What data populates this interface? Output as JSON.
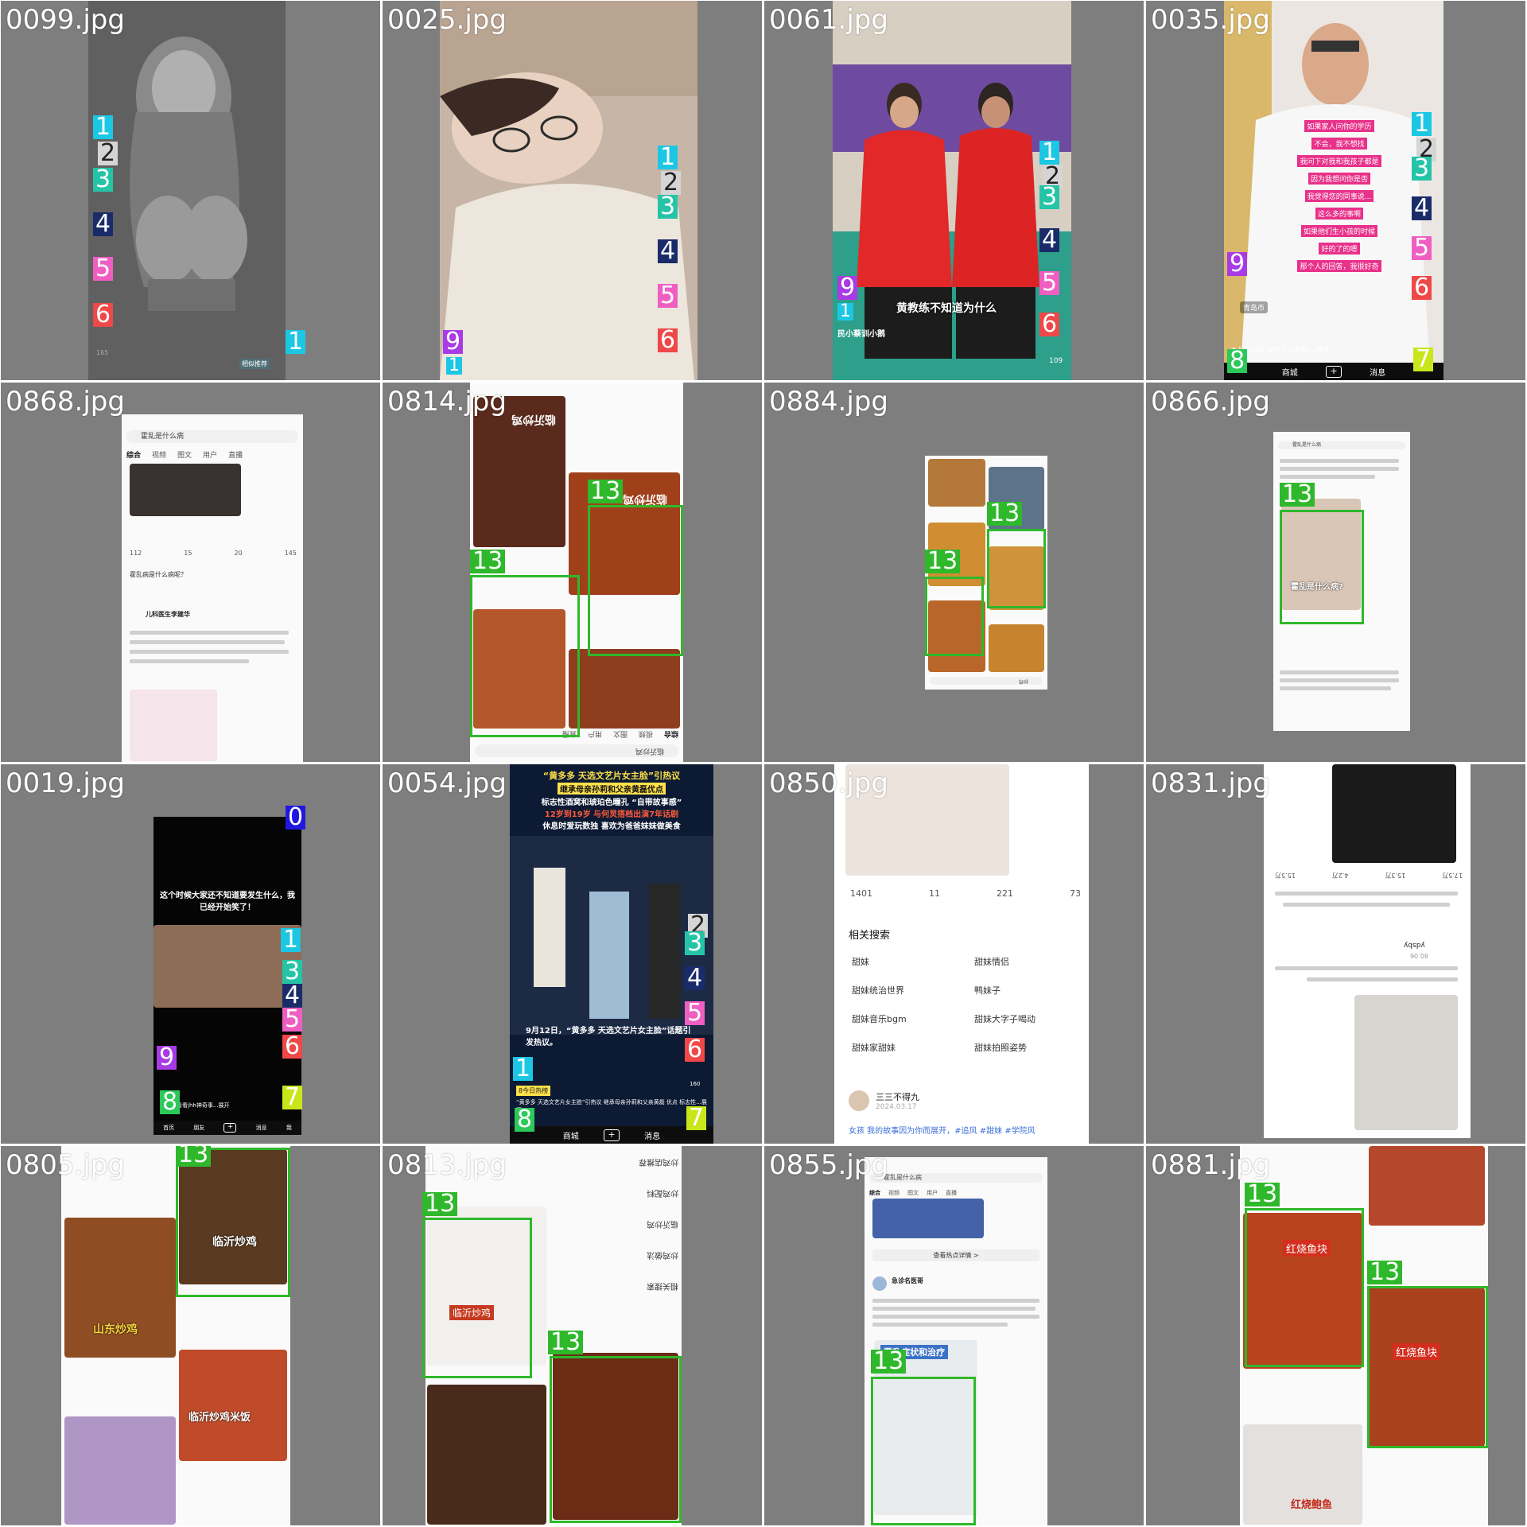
{
  "grid": {
    "tiles": [
      {
        "label": "0099.jpg",
        "bg": "#5b5b5b"
      },
      {
        "label": "0025.jpg",
        "bg": "#c9b3a2"
      },
      {
        "label": "0061.jpg",
        "bg": "#6a4c9c"
      },
      {
        "label": "0035.jpg",
        "bg": "#e7e2dd"
      },
      {
        "label": "0868.jpg",
        "bg": "#ffffff"
      },
      {
        "label": "0814.jpg",
        "bg": "#ffffff"
      },
      {
        "label": "0884.jpg",
        "bg": "#ffffff"
      },
      {
        "label": "0866.jpg",
        "bg": "#f4f4f4"
      },
      {
        "label": "0019.jpg",
        "bg": "#000000"
      },
      {
        "label": "0054.jpg",
        "bg": "#12203a"
      },
      {
        "label": "0850.jpg",
        "bg": "#ffffff"
      },
      {
        "label": "0831.jpg",
        "bg": "#ffffff"
      },
      {
        "label": "0805.jpg",
        "bg": "#ffffff"
      },
      {
        "label": "0813.jpg",
        "bg": "#ffffff"
      },
      {
        "label": "0855.jpg",
        "bg": "#ffffff"
      },
      {
        "label": "0881.jpg",
        "bg": "#ffffff"
      }
    ]
  },
  "marker_colors": {
    "0": "#1f18e0",
    "1": "#1bc7e3",
    "2": "#d5d5d5",
    "3": "#26c4a7",
    "4": "#1a2b6a",
    "5": "#ef5fc2",
    "6": "#ef4848",
    "7": "#c8e61a",
    "8": "#2bc85a",
    "9": "#a83be6",
    "13": "#2fb82b"
  },
  "overlays": {
    "t0061_caption": "黄教练不知道为什么",
    "t0061_user": "民小蔡训小鹅",
    "t0061_views": "109",
    "t0035_loc": "青岛市",
    "t0035_desc": "#人群分类 #打工人的精...展开",
    "t0035_nav_mid": "商城",
    "t0035_nav_right": "消息",
    "t0035_lines": [
      "如果家人问你的学历",
      "不会，我不想找",
      "我问下对我和我孩子都是",
      "因为我想问你是否",
      "我觉得您的同事说...",
      "这么多的事啊",
      "如果他们生小孩的时候",
      "好的了的嗯",
      "那个人的回答，我很好奇"
    ],
    "t0099_price": "165",
    "t0099_cta": "相似推荐",
    "t0868_search": "霍乱是什么病",
    "t0868_tabs": [
      "综合",
      "视频",
      "图文",
      "用户",
      "直播"
    ],
    "t0868_counts": [
      "112",
      "15",
      "20",
      "145"
    ],
    "t0868_author": "儿科医生李建华",
    "t0868_title": "霍乱病是什么病呢？",
    "t0814_search": "临沂炒鸡",
    "t0814_tabs": [
      "综合",
      "视频",
      "图文",
      "用户",
      "直播"
    ],
    "t0814_dish1": "临沂炒鸡",
    "t0814_dish2": "临沂炒鸡",
    "t0884_search": "炒鸡",
    "t0866_search": "霍乱是什么病",
    "t0866_thumb": "霍乱是什么病?",
    "t0019_headline": "这个时候大家还不知道要发生什么，我已经开始笑了！",
    "t0019_nav": [
      "首页",
      "朋友",
      "消息",
      "我"
    ],
    "t0019_desc": "大家来看看jhh神奇事...展开",
    "t0054_head1": "“黄多多 天选文艺片女主脸”引热议",
    "t0054_head2": "继承母亲孙莉和父亲黄磊优点",
    "t0054_head3": "标志性酒窝和琥珀色瞳孔 “自带故事感”",
    "t0054_head4": "12岁到19岁 与何炅搭档出演7年话剧",
    "t0054_head5": "休息时爱玩数独 喜欢为爸爸妹妹做美食",
    "t0054_sub": "9月12日，“黄多多 天选文艺片女主脸”话题引发热议。",
    "t0054_tag": "8今日热榜",
    "t0054_desc": "“黄多多 天选文艺片女主脸”引热议 继承母亲孙莉和父亲黄磊 优点 标志性...展开",
    "t0054_nav": [
      "商城",
      "消息"
    ],
    "t0054_count": "160",
    "t0850_stats": [
      "1401",
      "11",
      "221",
      "73"
    ],
    "t0850_related": "相关搜索",
    "t0850_items": [
      "甜妹",
      "甜妹情侣",
      "甜妹统治世界",
      "鸭妹子",
      "甜妹音乐bgm",
      "甜妹大字子喝动",
      "甜妹家甜妹",
      "甜妹拍照姿势"
    ],
    "t0850_author": "三三不得九",
    "t0850_date": "2024.03.17",
    "t0850_text": "女孩 我的故事因为你而展开，#追风 #甜妹 #学院风",
    "t0831_counts": [
      "17.5万",
      "15.3万",
      "4.2万",
      "15.5万"
    ],
    "t0831_user": "ydsby",
    "t0831_score": "80.06",
    "t0805_dish": "临沂炒鸡",
    "t0805_dish2": "山东炒鸡",
    "t0805_dish3": "临沂炒鸡米饭",
    "t0813_dish": "临沂炒鸡",
    "t0813_menu": [
      "相关搜索",
      "炒鸡做法",
      "临沂炒鸡",
      "炒鸡配料",
      "炒鸡店推荐"
    ],
    "t0855_search": "霍乱是什么病",
    "t0855_tabs": [
      "综合",
      "视频",
      "图文",
      "用户",
      "直播"
    ],
    "t0855_btn": "查看热点详情 >",
    "t0855_author": "急诊名医哥",
    "t0855_thumb": "霍乱症状和治疗",
    "t0881_dish": "红烧鱼块",
    "t0881_dish2": "红烧鱼块",
    "t0881_dish3": "红烧鲍鱼"
  }
}
